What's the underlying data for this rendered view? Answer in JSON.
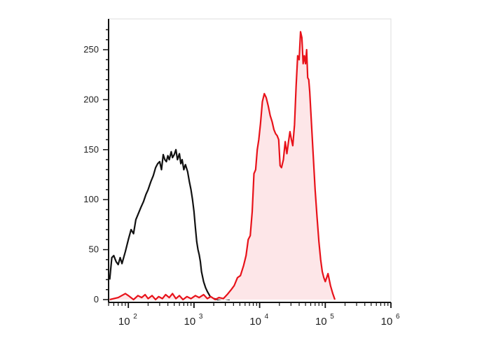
{
  "chart_data": {
    "type": "area",
    "title": "",
    "xlabel": "",
    "ylabel": "",
    "x_scale": "log",
    "xlim": [
      50,
      1000000
    ],
    "ylim": [
      0,
      280
    ],
    "grid": false,
    "y_ticks": [
      0,
      50,
      100,
      150,
      200,
      250
    ],
    "y_tick_labels": [
      "0",
      "50",
      "100",
      "150",
      "200",
      "250"
    ],
    "x_ticks": [
      {
        "value": 100,
        "base": "10",
        "exp": "2"
      },
      {
        "value": 1000,
        "base": "10",
        "exp": "3"
      },
      {
        "value": 10000,
        "base": "10",
        "exp": "4"
      },
      {
        "value": 100000,
        "base": "10",
        "exp": "5"
      },
      {
        "value": 1000000,
        "base": "10",
        "exp": "6"
      }
    ],
    "series": [
      {
        "color": "#111111",
        "fill": "none",
        "points": [
          [
            52,
            20
          ],
          [
            56,
            42
          ],
          [
            60,
            44
          ],
          [
            65,
            38
          ],
          [
            70,
            35
          ],
          [
            75,
            42
          ],
          [
            80,
            36
          ],
          [
            90,
            48
          ],
          [
            100,
            60
          ],
          [
            110,
            70
          ],
          [
            120,
            66
          ],
          [
            130,
            80
          ],
          [
            140,
            85
          ],
          [
            155,
            92
          ],
          [
            170,
            98
          ],
          [
            185,
            105
          ],
          [
            200,
            110
          ],
          [
            220,
            118
          ],
          [
            240,
            124
          ],
          [
            260,
            132
          ],
          [
            280,
            136
          ],
          [
            300,
            138
          ],
          [
            320,
            130
          ],
          [
            340,
            145
          ],
          [
            360,
            140
          ],
          [
            380,
            138
          ],
          [
            400,
            144
          ],
          [
            420,
            140
          ],
          [
            450,
            148
          ],
          [
            470,
            142
          ],
          [
            500,
            145
          ],
          [
            530,
            150
          ],
          [
            560,
            140
          ],
          [
            600,
            146
          ],
          [
            630,
            136
          ],
          [
            660,
            140
          ],
          [
            700,
            130
          ],
          [
            740,
            135
          ],
          [
            800,
            128
          ],
          [
            850,
            118
          ],
          [
            900,
            110
          ],
          [
            950,
            100
          ],
          [
            1000,
            88
          ],
          [
            1050,
            72
          ],
          [
            1100,
            58
          ],
          [
            1150,
            50
          ],
          [
            1200,
            45
          ],
          [
            1250,
            38
          ],
          [
            1300,
            28
          ],
          [
            1400,
            18
          ],
          [
            1500,
            12
          ],
          [
            1600,
            8
          ],
          [
            1700,
            5
          ],
          [
            1800,
            2
          ],
          [
            2000,
            1
          ],
          [
            2300,
            0
          ],
          [
            2800,
            1
          ],
          [
            3500,
            0
          ]
        ]
      },
      {
        "color": "#e8121a",
        "fill": "#fde6e8",
        "points": [
          [
            52,
            0
          ],
          [
            70,
            2
          ],
          [
            90,
            6
          ],
          [
            100,
            4
          ],
          [
            120,
            0
          ],
          [
            140,
            4
          ],
          [
            160,
            2
          ],
          [
            180,
            5
          ],
          [
            200,
            1
          ],
          [
            230,
            4
          ],
          [
            260,
            0
          ],
          [
            290,
            3
          ],
          [
            330,
            1
          ],
          [
            370,
            5
          ],
          [
            420,
            2
          ],
          [
            470,
            6
          ],
          [
            530,
            1
          ],
          [
            600,
            4
          ],
          [
            680,
            0
          ],
          [
            780,
            3
          ],
          [
            900,
            1
          ],
          [
            1050,
            4
          ],
          [
            1200,
            2
          ],
          [
            1400,
            5
          ],
          [
            1600,
            1
          ],
          [
            1800,
            3
          ],
          [
            2100,
            0
          ],
          [
            2400,
            2
          ],
          [
            2800,
            1
          ],
          [
            3200,
            5
          ],
          [
            3700,
            10
          ],
          [
            4100,
            14
          ],
          [
            4600,
            22
          ],
          [
            5100,
            24
          ],
          [
            5700,
            34
          ],
          [
            6200,
            44
          ],
          [
            6700,
            60
          ],
          [
            7200,
            64
          ],
          [
            7700,
            88
          ],
          [
            8200,
            126
          ],
          [
            8700,
            130
          ],
          [
            9200,
            150
          ],
          [
            9700,
            160
          ],
          [
            10300,
            176
          ],
          [
            11000,
            198
          ],
          [
            11800,
            206
          ],
          [
            12600,
            202
          ],
          [
            13500,
            194
          ],
          [
            14500,
            184
          ],
          [
            15500,
            178
          ],
          [
            16500,
            170
          ],
          [
            17500,
            166
          ],
          [
            18500,
            164
          ],
          [
            19500,
            160
          ],
          [
            20500,
            134
          ],
          [
            21500,
            132
          ],
          [
            23000,
            140
          ],
          [
            24500,
            158
          ],
          [
            26000,
            146
          ],
          [
            27500,
            158
          ],
          [
            29000,
            168
          ],
          [
            30500,
            160
          ],
          [
            32000,
            154
          ],
          [
            34000,
            175
          ],
          [
            36000,
            214
          ],
          [
            38000,
            244
          ],
          [
            40000,
            240
          ],
          [
            42000,
            268
          ],
          [
            44000,
            262
          ],
          [
            46000,
            236
          ],
          [
            48000,
            244
          ],
          [
            50000,
            236
          ],
          [
            52000,
            250
          ],
          [
            54000,
            222
          ],
          [
            56000,
            220
          ],
          [
            58000,
            208
          ],
          [
            60000,
            190
          ],
          [
            65000,
            148
          ],
          [
            70000,
            110
          ],
          [
            75000,
            82
          ],
          [
            80000,
            58
          ],
          [
            85000,
            40
          ],
          [
            90000,
            28
          ],
          [
            95000,
            22
          ],
          [
            100000,
            18
          ],
          [
            110000,
            26
          ],
          [
            120000,
            14
          ],
          [
            130000,
            6
          ],
          [
            140000,
            0
          ]
        ]
      }
    ]
  }
}
